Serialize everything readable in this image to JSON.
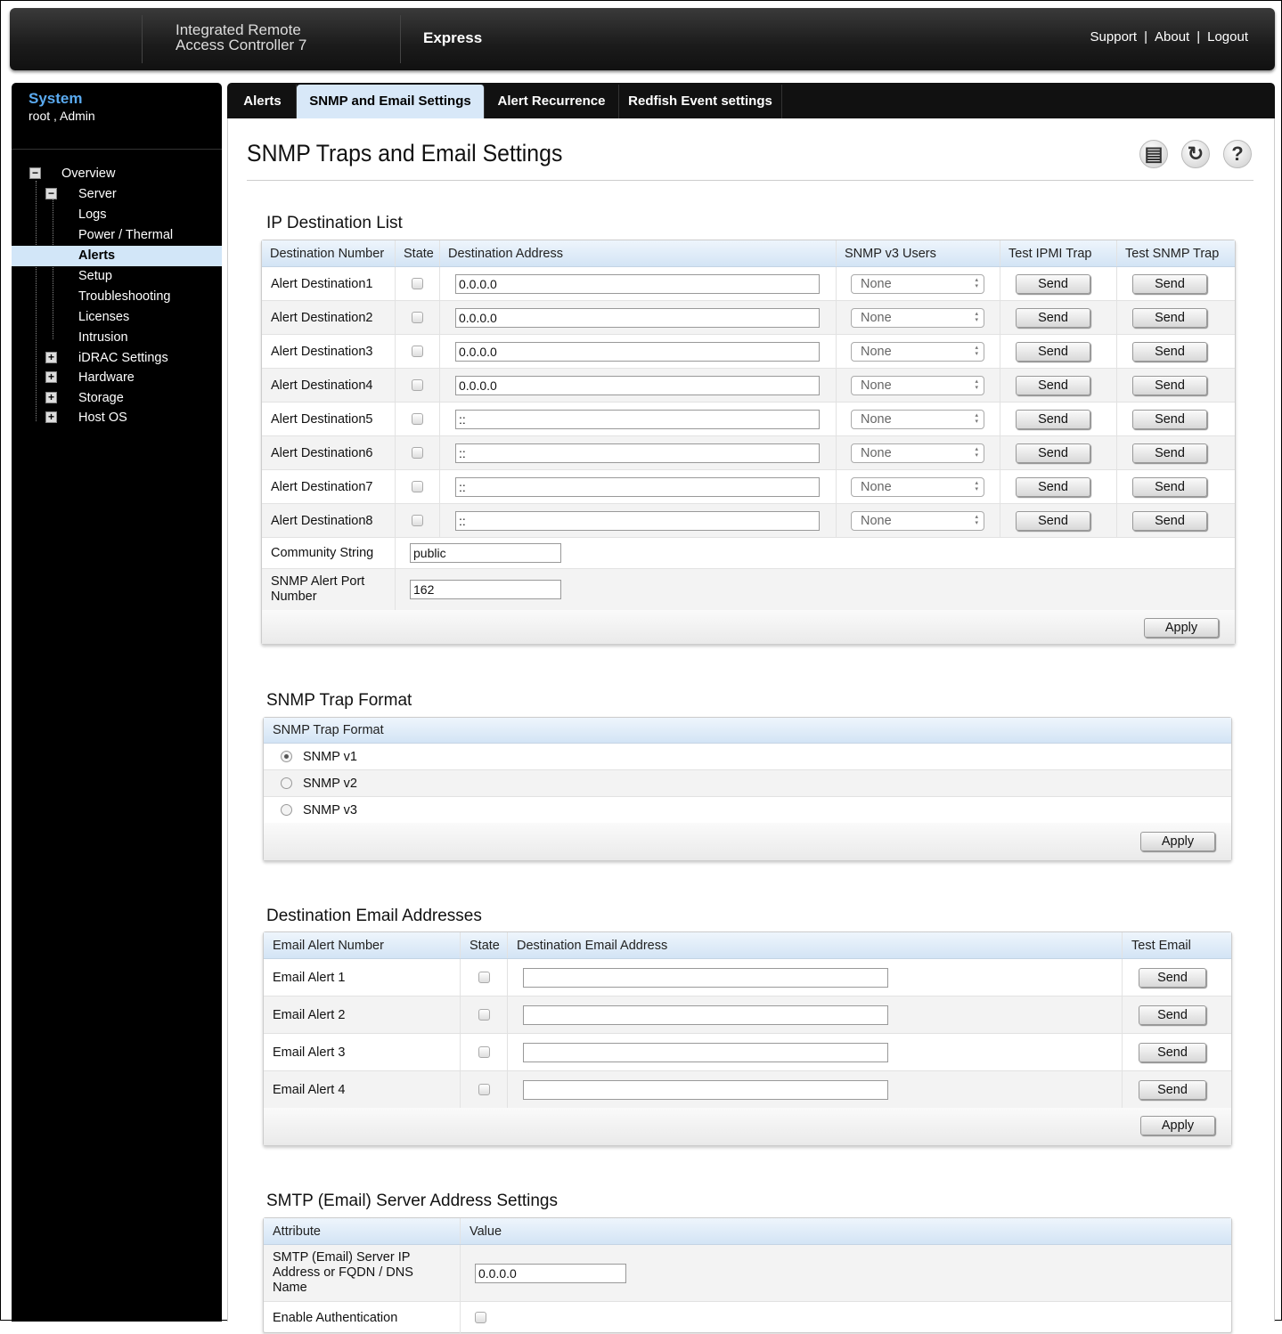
{
  "header": {
    "brand_line1": "Integrated Remote",
    "brand_line2": "Access Controller 7",
    "edition": "Express",
    "links": [
      "Support",
      "About",
      "Logout"
    ]
  },
  "sidebar": {
    "title": "System",
    "user": "root , Admin",
    "items": [
      {
        "label": "Overview",
        "toggle": "-"
      },
      {
        "label": "Server",
        "toggle": "-"
      },
      {
        "label": "Logs"
      },
      {
        "label": "Power / Thermal"
      },
      {
        "label": "Alerts",
        "selected": true
      },
      {
        "label": "Setup"
      },
      {
        "label": "Troubleshooting"
      },
      {
        "label": "Licenses"
      },
      {
        "label": "Intrusion"
      },
      {
        "label": "iDRAC Settings",
        "toggle": "+"
      },
      {
        "label": "Hardware",
        "toggle": "+"
      },
      {
        "label": "Storage",
        "toggle": "+"
      },
      {
        "label": "Host OS",
        "toggle": "+"
      }
    ]
  },
  "tabs": [
    {
      "label": "Alerts"
    },
    {
      "label": "SNMP and Email Settings",
      "active": true
    },
    {
      "label": "Alert Recurrence"
    },
    {
      "label": "Redfish Event settings"
    }
  ],
  "page": {
    "title": "SNMP Traps and Email Settings",
    "icons": [
      "print-icon",
      "refresh-icon",
      "help-icon"
    ]
  },
  "ip_list": {
    "title": "IP Destination List",
    "columns": [
      "Destination Number",
      "State",
      "Destination Address",
      "SNMP v3 Users",
      "Test IPMI Trap",
      "Test SNMP Trap"
    ],
    "rows": [
      {
        "name": "Alert Destination1",
        "checked": false,
        "address": "0.0.0.0",
        "user": "None",
        "ipmi": "Send",
        "snmp": "Send"
      },
      {
        "name": "Alert Destination2",
        "checked": false,
        "address": "0.0.0.0",
        "user": "None",
        "ipmi": "Send",
        "snmp": "Send"
      },
      {
        "name": "Alert Destination3",
        "checked": false,
        "address": "0.0.0.0",
        "user": "None",
        "ipmi": "Send",
        "snmp": "Send"
      },
      {
        "name": "Alert Destination4",
        "checked": false,
        "address": "0.0.0.0",
        "user": "None",
        "ipmi": "Send",
        "snmp": "Send"
      },
      {
        "name": "Alert Destination5",
        "checked": false,
        "address": "::",
        "user": "None",
        "ipmi": "Send",
        "snmp": "Send"
      },
      {
        "name": "Alert Destination6",
        "checked": false,
        "address": "::",
        "user": "None",
        "ipmi": "Send",
        "snmp": "Send"
      },
      {
        "name": "Alert Destination7",
        "checked": false,
        "address": "::",
        "user": "None",
        "ipmi": "Send",
        "snmp": "Send"
      },
      {
        "name": "Alert Destination8",
        "checked": false,
        "address": "::",
        "user": "None",
        "ipmi": "Send",
        "snmp": "Send"
      }
    ],
    "community_label": "Community String",
    "community_value": "public",
    "port_label": "SNMP Alert Port Number",
    "port_value": "162",
    "apply": "Apply"
  },
  "trap_format": {
    "title": "SNMP Trap Format",
    "header": "SNMP Trap Format",
    "options": [
      {
        "label": "SNMP v1",
        "selected": true
      },
      {
        "label": "SNMP v2",
        "selected": false
      },
      {
        "label": "SNMP v3",
        "selected": false
      }
    ],
    "apply": "Apply"
  },
  "email": {
    "title": "Destination Email Addresses",
    "columns": [
      "Email Alert Number",
      "State",
      "Destination Email Address",
      "Test Email"
    ],
    "rows": [
      {
        "name": "Email Alert 1",
        "checked": false,
        "address": "",
        "test": "Send"
      },
      {
        "name": "Email Alert 2",
        "checked": false,
        "address": "",
        "test": "Send"
      },
      {
        "name": "Email Alert 3",
        "checked": false,
        "address": "",
        "test": "Send"
      },
      {
        "name": "Email Alert 4",
        "checked": false,
        "address": "",
        "test": "Send"
      }
    ],
    "apply": "Apply"
  },
  "smtp": {
    "title": "SMTP (Email) Server Address Settings",
    "columns": [
      "Attribute",
      "Value"
    ],
    "server_label": "SMTP (Email) Server IP Address or FQDN / DNS Name",
    "server_value": "0.0.0.0",
    "auth_label": "Enable Authentication",
    "auth_checked": false
  },
  "colors": {
    "accent": "#5aaaf0",
    "selected_bg": "#d2e6f8"
  }
}
